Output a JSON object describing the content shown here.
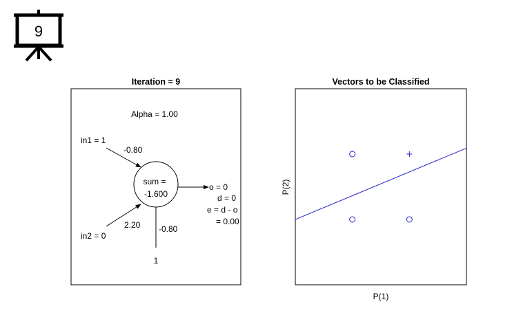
{
  "badge": {
    "number": "9",
    "icon": "presentation-board-icon"
  },
  "neuron_panel": {
    "title": "Iteration = 9",
    "alpha": "Alpha = 1.00",
    "in1": "in1 = 1",
    "w1": "-0.80",
    "in2": "in2 = 0",
    "w2": "2.20",
    "bias_weight": "-0.80",
    "bias_input": "1",
    "sum_label": "sum =",
    "sum_value": "-1.600",
    "out_o": "o = 0",
    "out_d": "d = 0",
    "out_e": "e = d - o",
    "out_e_val": "= 0.00"
  },
  "chart_data": {
    "type": "scatter",
    "title": "Vectors to be Classified",
    "xlabel": "P(1)",
    "ylabel": "P(2)",
    "xlim": [
      -1,
      2
    ],
    "ylim": [
      -1,
      2
    ],
    "points": [
      {
        "x": 0,
        "y": 0,
        "marker": "o"
      },
      {
        "x": 1,
        "y": 0,
        "marker": "o"
      },
      {
        "x": 0,
        "y": 1,
        "marker": "o"
      },
      {
        "x": 1,
        "y": 1,
        "marker": "+"
      }
    ],
    "boundary": {
      "w1": -0.8,
      "w2": 2.2,
      "bias": -0.8
    },
    "colors": {
      "markers": "#2222cc",
      "boundary": "#2222cc"
    }
  }
}
